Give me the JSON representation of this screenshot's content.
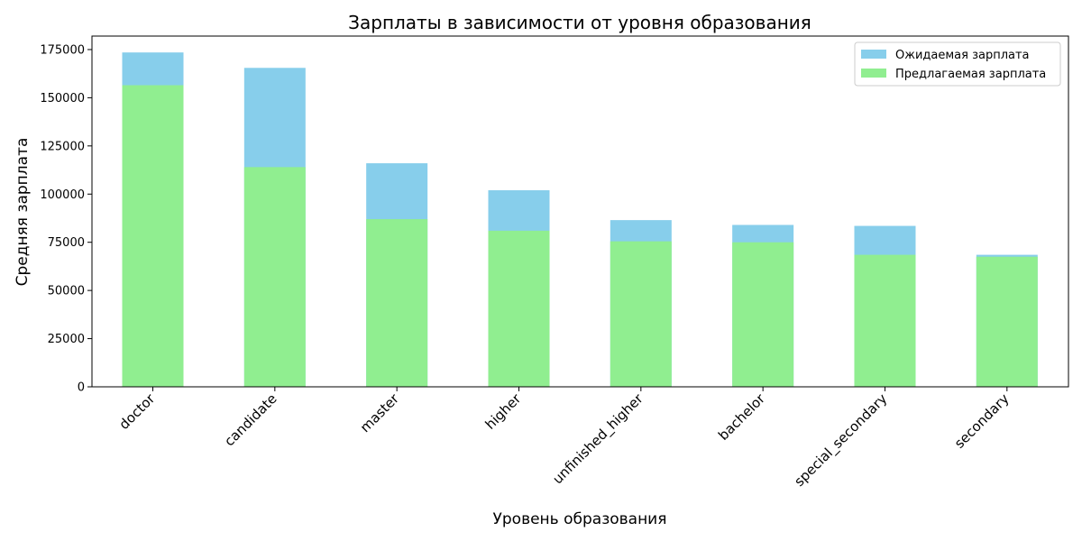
{
  "chart_data": {
    "type": "bar",
    "title": "Зарплаты в зависимости от уровня образования",
    "xlabel": "Уровень образования",
    "ylabel": "Средняя зарплата",
    "categories": [
      "doctor",
      "candidate",
      "master",
      "higher",
      "unfinished_higher",
      "bachelor",
      "special_secondary",
      "secondary"
    ],
    "ylim": [
      0,
      182000
    ],
    "yticks": [
      0,
      25000,
      50000,
      75000,
      100000,
      125000,
      150000,
      175000
    ],
    "grid": false,
    "legend_position": "top-right",
    "series": [
      {
        "name": "Ожидаемая зарплата",
        "color": "#87ceeb",
        "values": [
          173500,
          165500,
          116000,
          102000,
          86500,
          84000,
          83500,
          68500
        ]
      },
      {
        "name": "Предлагаемая зарплата",
        "color": "#90ee90",
        "values": [
          156500,
          114000,
          87000,
          81000,
          75500,
          75000,
          68500,
          67500
        ]
      }
    ]
  }
}
